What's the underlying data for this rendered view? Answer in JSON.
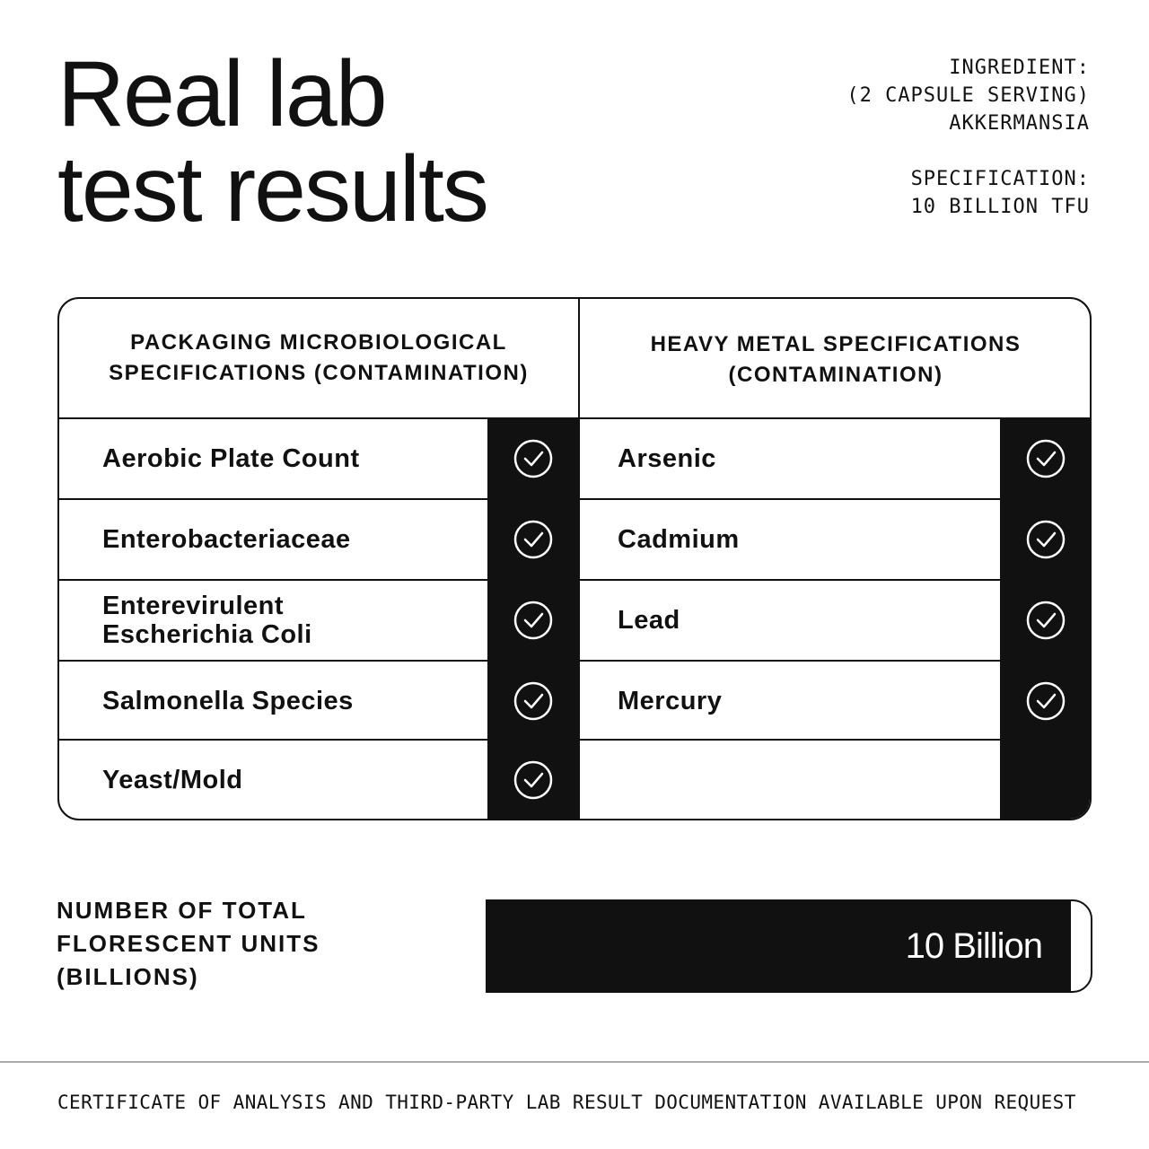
{
  "header": {
    "title_line1": "Real lab",
    "title_line2": "test results",
    "ingredient_label": "INGREDIENT:",
    "ingredient_serving": "(2 CAPSULE SERVING)",
    "ingredient_value": "AKKERMANSIA",
    "specification_label": "SPECIFICATION:",
    "specification_value": "10 BILLION TFU"
  },
  "table": {
    "left_header_line1": "PACKAGING MICROBIOLOGICAL",
    "left_header_line2": "SPECIFICATIONS (CONTAMINATION)",
    "right_header_line1": "HEAVY METAL SPECIFICATIONS",
    "right_header_line2": "(CONTAMINATION)",
    "left_items": [
      {
        "line1": "Aerobic Plate Count",
        "line2": "",
        "passed": true
      },
      {
        "line1": "Enterobacteriaceae",
        "line2": "",
        "passed": true
      },
      {
        "line1": "Enterevirulent",
        "line2": "Escherichia Coli",
        "passed": true
      },
      {
        "line1": "Salmonella Species",
        "line2": "",
        "passed": true
      },
      {
        "line1": "Yeast/Mold",
        "line2": "",
        "passed": true
      }
    ],
    "right_items": [
      {
        "line1": "Arsenic",
        "passed": true
      },
      {
        "line1": "Cadmium",
        "passed": true
      },
      {
        "line1": "Lead",
        "passed": true
      },
      {
        "line1": "Mercury",
        "passed": true
      }
    ],
    "check_icon": "circle-check-icon"
  },
  "total": {
    "label_line1": "NUMBER OF TOTAL",
    "label_line2": "FLORESCENT UNITS",
    "label_line3": "(BILLIONS)",
    "value": "10 Billion",
    "fill_fraction": 0.967
  },
  "footer": {
    "text": "CERTIFICATE OF ANALYSIS AND THIRD-PARTY LAB RESULT DOCUMENTATION AVAILABLE UPON REQUEST"
  },
  "colors": {
    "ink": "#111111",
    "background": "#ffffff",
    "divider": "#aaaaaa"
  }
}
